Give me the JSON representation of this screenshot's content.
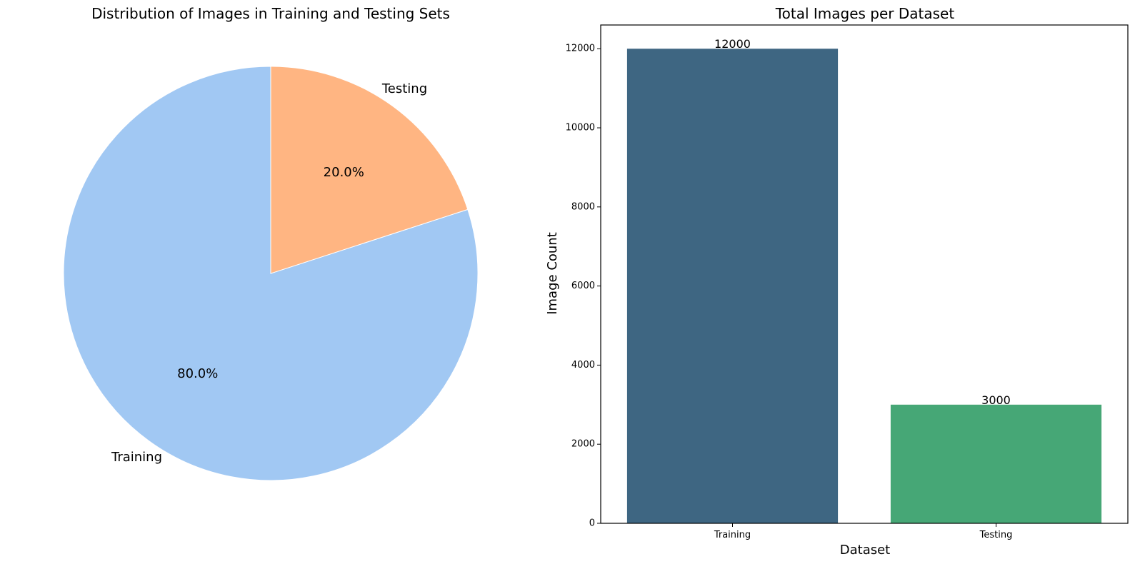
{
  "chart_data": [
    {
      "type": "pie",
      "title": "Distribution of Images in Training and Testing Sets",
      "labels": [
        "Training",
        "Testing"
      ],
      "values": [
        80.0,
        20.0
      ],
      "value_labels": [
        "80.0%",
        "20.0%"
      ],
      "colors": [
        "#a1c8f3",
        "#ffb582"
      ],
      "start_angle_deg": 90,
      "direction": "counterclockwise"
    },
    {
      "type": "bar",
      "title": "Total Images per Dataset",
      "xlabel": "Dataset",
      "ylabel": "Image Count",
      "categories": [
        "Training",
        "Testing"
      ],
      "values": [
        12000,
        3000
      ],
      "value_labels": [
        "12000",
        "3000"
      ],
      "colors": [
        "#3e6682",
        "#46a776"
      ],
      "ylim": [
        0,
        12600
      ],
      "yticks": [
        0,
        2000,
        4000,
        6000,
        8000,
        10000,
        12000
      ],
      "ytick_labels": [
        "0",
        "2000",
        "4000",
        "6000",
        "8000",
        "10000",
        "12000"
      ],
      "grid": false,
      "legend": false
    }
  ]
}
